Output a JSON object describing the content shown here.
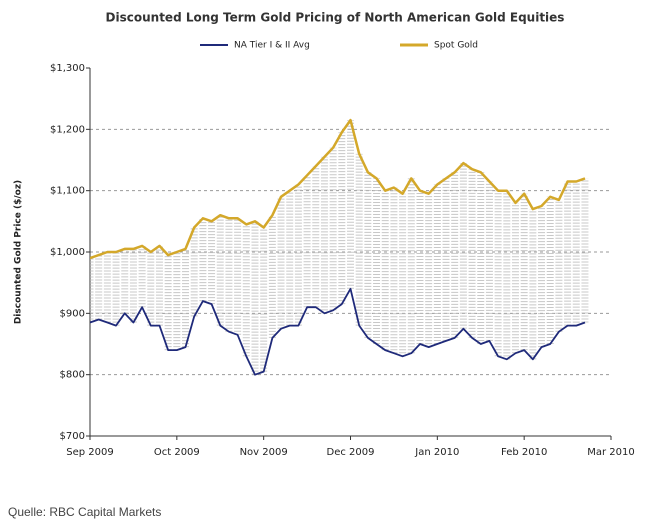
{
  "chart_data": {
    "type": "line",
    "title": "Discounted Long Term Gold Pricing of North American Gold Equities",
    "ylabel": "Discounted Gold Price ($/oz)",
    "source": "Quelle: RBC Capital Markets",
    "x": [
      0,
      0.1,
      0.2,
      0.3,
      0.4,
      0.5,
      0.6,
      0.7,
      0.8,
      0.9,
      1.0,
      1.1,
      1.2,
      1.3,
      1.4,
      1.5,
      1.6,
      1.7,
      1.8,
      1.9,
      2.0,
      2.1,
      2.2,
      2.3,
      2.4,
      2.5,
      2.6,
      2.7,
      2.8,
      2.9,
      3.0,
      3.1,
      3.2,
      3.3,
      3.4,
      3.5,
      3.6,
      3.7,
      3.8,
      3.9,
      4.0,
      4.1,
      4.2,
      4.3,
      4.4,
      4.5,
      4.6,
      4.7,
      4.8,
      4.9,
      5.0,
      5.1,
      5.2,
      5.3,
      5.4,
      5.5,
      5.6,
      5.7
    ],
    "series": [
      {
        "name": "NA Tier I & II Avg",
        "color": "#1f2a7a",
        "values": [
          885,
          890,
          885,
          880,
          900,
          885,
          910,
          880,
          880,
          840,
          840,
          845,
          895,
          920,
          915,
          880,
          870,
          865,
          830,
          800,
          805,
          860,
          875,
          880,
          880,
          910,
          910,
          900,
          905,
          915,
          940,
          880,
          860,
          850,
          840,
          835,
          830,
          835,
          850,
          845,
          850,
          855,
          860,
          875,
          860,
          850,
          855,
          830,
          825,
          835,
          840,
          825,
          845,
          850,
          870,
          880,
          880,
          885
        ]
      },
      {
        "name": "Spot Gold",
        "color": "#d4a82a",
        "values": [
          990,
          995,
          1000,
          1000,
          1005,
          1005,
          1010,
          1000,
          1010,
          995,
          1000,
          1005,
          1040,
          1055,
          1050,
          1060,
          1055,
          1055,
          1045,
          1050,
          1040,
          1060,
          1090,
          1100,
          1110,
          1125,
          1140,
          1155,
          1170,
          1195,
          1215,
          1160,
          1130,
          1120,
          1100,
          1105,
          1095,
          1120,
          1100,
          1095,
          1110,
          1120,
          1130,
          1145,
          1135,
          1130,
          1115,
          1100,
          1100,
          1080,
          1095,
          1070,
          1075,
          1090,
          1085,
          1115,
          1115,
          1120
        ]
      }
    ],
    "xlim": [
      0,
      6
    ],
    "xticks": [
      {
        "value": 0,
        "label": "Sep 2009"
      },
      {
        "value": 1,
        "label": "Oct 2009"
      },
      {
        "value": 2,
        "label": "Nov 2009"
      },
      {
        "value": 3,
        "label": "Dec 2009"
      },
      {
        "value": 4,
        "label": "Jan 2010"
      },
      {
        "value": 5,
        "label": "Feb 2010"
      },
      {
        "value": 6,
        "label": "Mar 2010"
      }
    ],
    "ylim": [
      700,
      1300
    ],
    "yticks": [
      {
        "value": 700,
        "label": "$700"
      },
      {
        "value": 800,
        "label": "$800"
      },
      {
        "value": 900,
        "label": "$900"
      },
      {
        "value": 1000,
        "label": "$1,000"
      },
      {
        "value": 1100,
        "label": "$1,100"
      },
      {
        "value": 1200,
        "label": "$1,200"
      },
      {
        "value": 1300,
        "label": "$1,300"
      }
    ],
    "grid": true,
    "legend": "top"
  }
}
